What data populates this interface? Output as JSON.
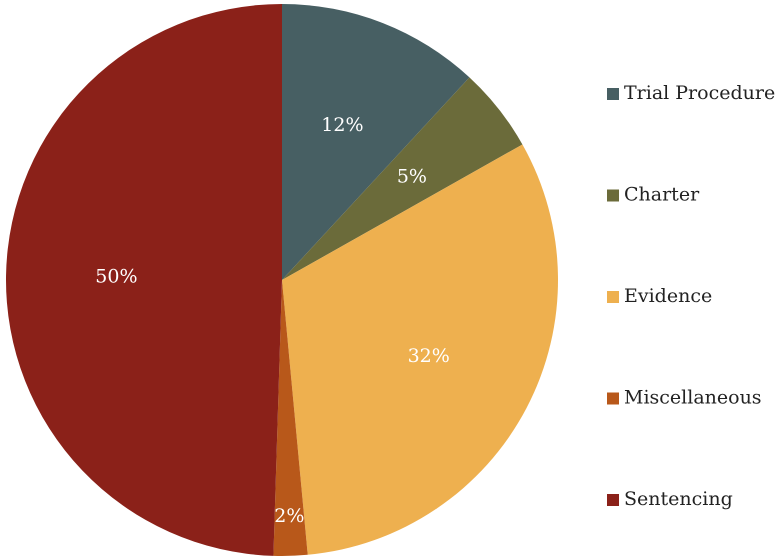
{
  "chart_data": {
    "type": "pie",
    "categories": [
      "Trial Procedure",
      "Charter",
      "Evidence",
      "Miscellaneous",
      "Sentencing"
    ],
    "values": [
      12,
      5,
      32,
      2,
      50
    ],
    "value_labels": [
      "12%",
      "5%",
      "32%",
      "2%",
      "50%"
    ],
    "colors": [
      "#475f63",
      "#6b6b3a",
      "#eeb04f",
      "#b8581a",
      "#8b2119"
    ],
    "legend": "right"
  }
}
